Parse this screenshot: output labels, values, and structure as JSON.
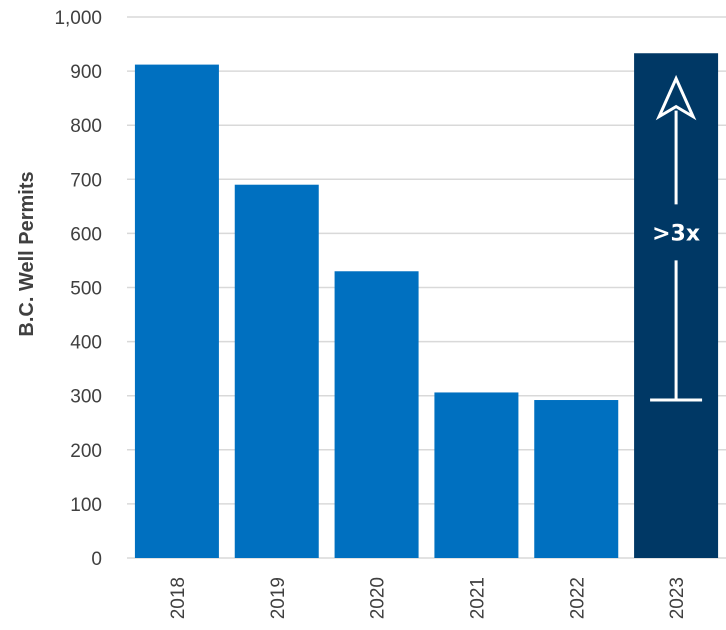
{
  "chart_data": {
    "type": "bar",
    "categories": [
      "2018",
      "2019",
      "2020",
      "2021",
      "2022",
      "2023"
    ],
    "values": [
      912,
      690,
      530,
      306,
      292,
      933
    ],
    "title": "",
    "xlabel": "",
    "ylabel": "B.C. Well Permits",
    "ylim": [
      0,
      1000
    ],
    "yticks": [
      0,
      100,
      200,
      300,
      400,
      500,
      600,
      700,
      800,
      900,
      1000
    ],
    "ytick_labels": [
      "0",
      "100",
      "200",
      "300",
      "400",
      "500",
      "600",
      "700",
      "800",
      "900",
      "1,000"
    ],
    "grid": true,
    "highlight_category": "2023",
    "annotation": {
      "text": ">3x",
      "category": "2023",
      "from_value": 292,
      "to_value": 912
    },
    "colors": {
      "bar": "#0070c0",
      "highlight_bar": "#003865",
      "annotation": "#ffffff",
      "grid": "#d9d9d9",
      "text": "#404040"
    }
  }
}
